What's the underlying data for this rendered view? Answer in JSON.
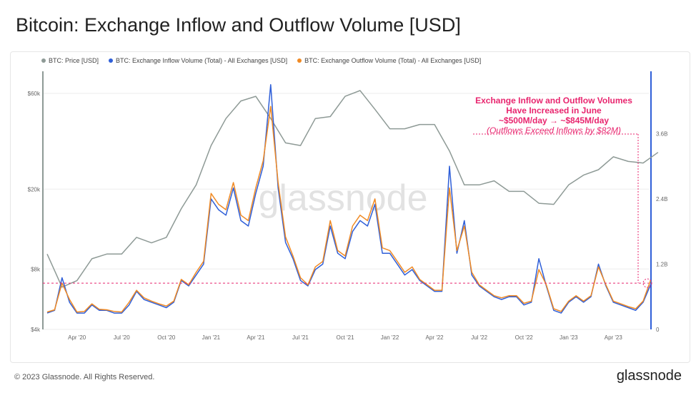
{
  "title": "Bitcoin: Exchange Inflow and Outflow Volume [USD]",
  "footer": "© 2023 Glassnode. All Rights Reserved.",
  "brand": "glassnode",
  "watermark": "glassnode",
  "chart_data": {
    "type": "line",
    "title": "Bitcoin: Exchange Inflow and Outflow Volume [USD]",
    "legend": [
      "BTC: Price [USD]",
      "BTC: Exchange Inflow Volume (Total) - All Exchanges [USD]",
      "BTC: Exchange Outflow Volume (Total) - All Exchanges [USD]"
    ],
    "legend_position": "top-left",
    "colors": {
      "price": "#8e9a96",
      "inflow": "#2f5fd8",
      "outflow": "#f08a24",
      "annotation": "#e8256e"
    },
    "x_ticks": [
      "Apr '20",
      "Jul '20",
      "Oct '20",
      "Jan '21",
      "Apr '21",
      "Jul '21",
      "Oct '21",
      "Jan '22",
      "Apr '22",
      "Jul '22",
      "Oct '22",
      "Jan '23",
      "Apr '23"
    ],
    "y_left": {
      "scale": "log",
      "ticks": [
        "$4k",
        "$8k",
        "$20k",
        "$60k"
      ],
      "tick_values": [
        4000,
        8000,
        20000,
        60000
      ]
    },
    "y_right": {
      "scale": "linear",
      "ticks": [
        "0",
        "1.2B",
        "2.4B",
        "3.6B"
      ],
      "tick_values": [
        0,
        1.2,
        2.4,
        3.6
      ]
    },
    "start": "2020-02",
    "end": "2023-07",
    "price_monthly": [
      9500,
      6500,
      7000,
      9000,
      9500,
      9500,
      11500,
      10800,
      11500,
      16000,
      21000,
      33000,
      45000,
      55000,
      58000,
      45000,
      34000,
      33000,
      45000,
      46000,
      58000,
      62000,
      50000,
      40000,
      40000,
      42000,
      42000,
      31000,
      21000,
      21000,
      22000,
      19500,
      19500,
      17000,
      16800,
      21000,
      23500,
      25000,
      29000,
      27500,
      27000,
      30500
    ],
    "inflow_semimonthly_B": [
      0.3,
      0.35,
      0.95,
      0.5,
      0.3,
      0.3,
      0.45,
      0.35,
      0.35,
      0.3,
      0.3,
      0.45,
      0.7,
      0.55,
      0.5,
      0.45,
      0.4,
      0.5,
      0.9,
      0.8,
      1.0,
      1.2,
      2.4,
      2.2,
      2.1,
      2.6,
      2.0,
      1.9,
      2.5,
      3.0,
      4.5,
      2.6,
      1.6,
      1.3,
      0.9,
      0.8,
      1.1,
      1.2,
      1.9,
      1.4,
      1.3,
      1.8,
      2.0,
      1.9,
      2.3,
      1.4,
      1.4,
      1.2,
      1.0,
      1.1,
      0.9,
      0.8,
      0.7,
      0.7,
      3.0,
      1.4,
      2.0,
      1.0,
      0.8,
      0.7,
      0.6,
      0.55,
      0.6,
      0.6,
      0.45,
      0.5,
      1.3,
      0.8,
      0.35,
      0.3,
      0.5,
      0.6,
      0.5,
      0.6,
      1.2,
      0.8,
      0.5,
      0.45,
      0.4,
      0.35,
      0.5,
      0.82
    ],
    "outflow_semimonthly_B": [
      0.32,
      0.36,
      0.85,
      0.55,
      0.32,
      0.33,
      0.47,
      0.37,
      0.36,
      0.33,
      0.32,
      0.5,
      0.72,
      0.58,
      0.52,
      0.47,
      0.43,
      0.52,
      0.92,
      0.82,
      1.05,
      1.25,
      2.5,
      2.3,
      2.2,
      2.7,
      2.1,
      2.0,
      2.6,
      3.1,
      4.1,
      2.7,
      1.7,
      1.35,
      0.95,
      0.82,
      1.15,
      1.25,
      2.0,
      1.45,
      1.35,
      1.9,
      2.1,
      2.0,
      2.4,
      1.5,
      1.45,
      1.25,
      1.05,
      1.15,
      0.92,
      0.82,
      0.72,
      0.72,
      2.6,
      1.45,
      1.9,
      1.05,
      0.82,
      0.72,
      0.62,
      0.58,
      0.62,
      0.62,
      0.48,
      0.52,
      1.1,
      0.82,
      0.38,
      0.33,
      0.52,
      0.62,
      0.52,
      0.62,
      1.15,
      0.82,
      0.52,
      0.47,
      0.42,
      0.38,
      0.52,
      0.9
    ],
    "annotation": {
      "line1": "Exchange Inflow and Outflow Volumes",
      "line2": "Have Increased in June",
      "line3": "~$500M/day → ~$845M/day",
      "line4": "(Outflows Exceed Inflows by $82M)",
      "reference_level_B": 0.85
    }
  }
}
